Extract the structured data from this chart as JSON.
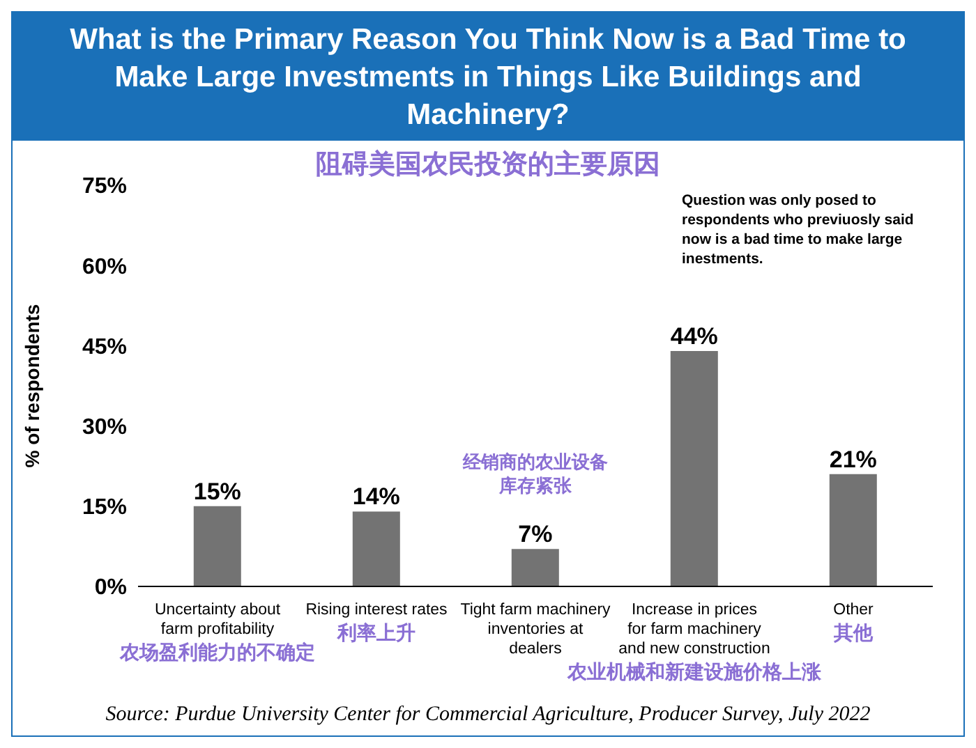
{
  "chart_data": {
    "type": "bar",
    "title": "What is the Primary Reason You Think Now is a Bad Time to Make Large Investments in Things Like Buildings and Machinery?",
    "subtitle": "阻碍美国农民投资的主要原因",
    "ylabel": "% of respondents",
    "categories": [
      "Uncertainty about farm profitability",
      "Rising interest rates",
      "Tight farm machinery inventories at dealers",
      "Increase in prices for farm machinery and new construction",
      "Other"
    ],
    "values": [
      15,
      14,
      7,
      44,
      21
    ],
    "color": "#737373",
    "value_labels": [
      "15%",
      "14%",
      "7%",
      "44%",
      "21%"
    ],
    "ylim": [
      0,
      75
    ],
    "yticks": [
      {
        "value": 0,
        "label": "0%"
      },
      {
        "value": 15,
        "label": "15%"
      },
      {
        "value": 30,
        "label": "30%"
      },
      {
        "value": 45,
        "label": "45%"
      },
      {
        "value": 60,
        "label": "60%"
      },
      {
        "value": 75,
        "label": "75%"
      }
    ],
    "annotations": [
      "Question was only posed to respondents who previuosly said now is a bad time to make large inestments.",
      "农场盈利能力的不确定",
      "利率上升",
      "经销商的农业设备库存紧张",
      "农业机械和新建设施价格上涨",
      "其他",
      "Source: Purdue University Center for Commercial Agriculture, Producer Survey, July 2022"
    ]
  }
}
